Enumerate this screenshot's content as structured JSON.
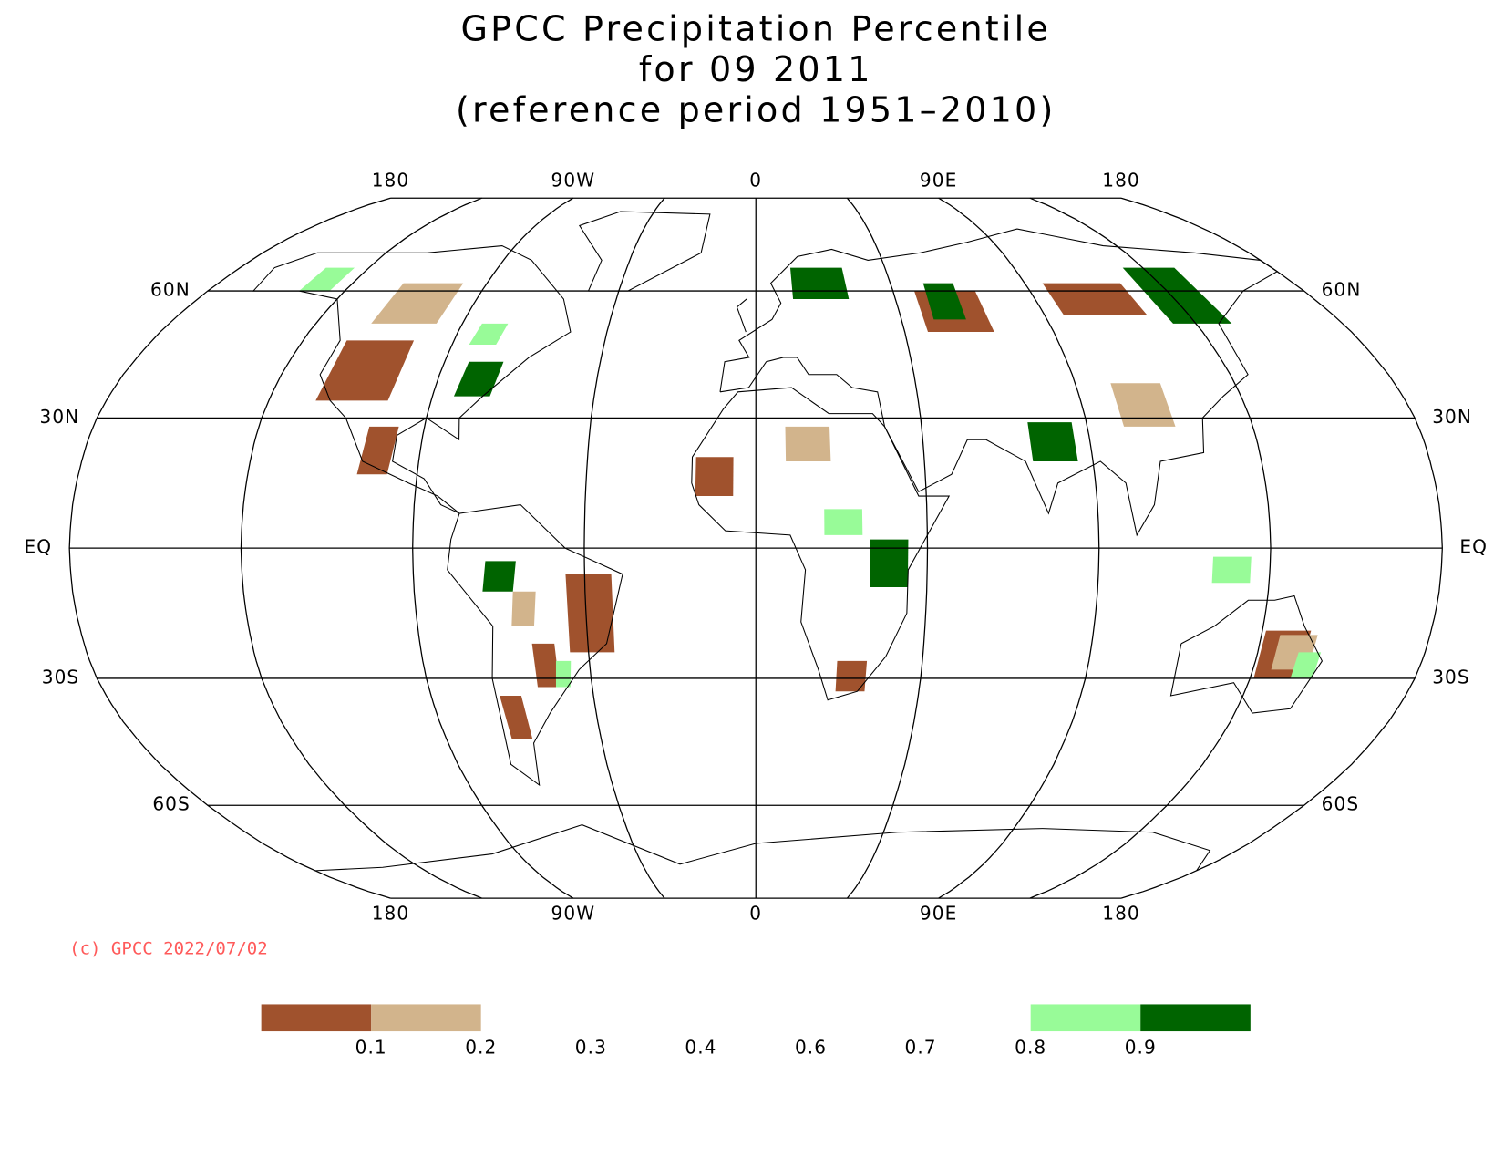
{
  "chart_data": {
    "type": "map",
    "title": [
      "GPCC Precipitation Percentile",
      "for 09 2011",
      "(reference period 1951–2010)"
    ],
    "lonticks": [
      {
        "value": -180,
        "label": "180"
      },
      {
        "value": -90,
        "label": "90W"
      },
      0,
      {
        "value": 90,
        "label": "90E"
      },
      {
        "value": 180,
        "label": "180"
      }
    ],
    "latticks": [
      {
        "value": 60,
        "label": "60N"
      },
      {
        "value": 30,
        "label": "30N"
      },
      {
        "value": 0,
        "label": "EQ"
      },
      {
        "value": -30,
        "label": "30S"
      },
      {
        "value": -60,
        "label": "60S"
      }
    ],
    "credit": "(c) GPCC 2022/07/02",
    "colorbar": {
      "levels": [
        0.1,
        0.2,
        0.3,
        0.4,
        0.6,
        0.7,
        0.8,
        0.9
      ],
      "colors": [
        "#a0522d",
        "#d2b48c",
        "#ffffff",
        "#ffffff",
        "#ffffff",
        "#ffffff",
        "#ffffff",
        "#98fb98",
        "#006400"
      ]
    }
  }
}
